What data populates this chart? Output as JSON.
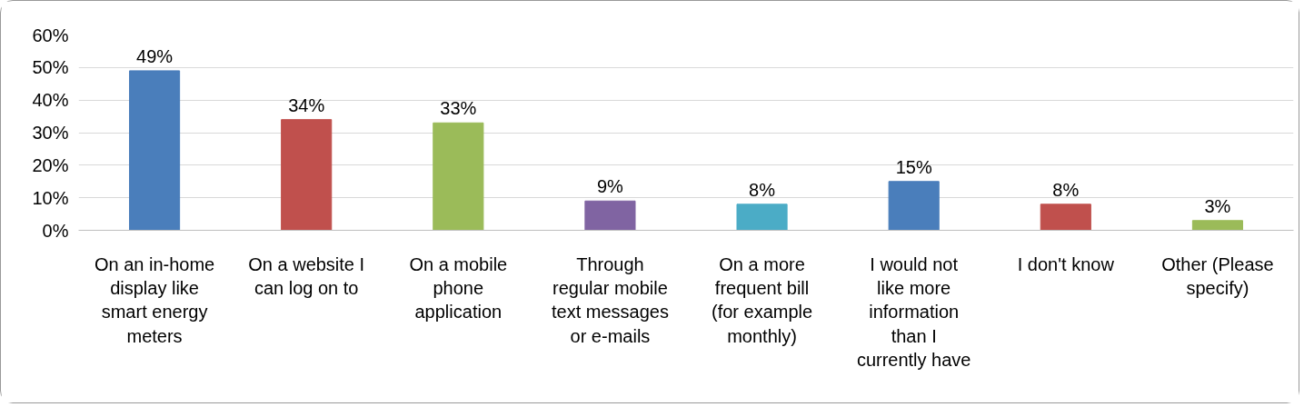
{
  "chart_data": {
    "type": "bar",
    "categories": [
      "On an in-home display like smart energy meters",
      "On a website I can log on to",
      "On a mobile phone application",
      "Through regular mobile text messages or e-mails",
      "On a more frequent bill (for example monthly)",
      "I would not like more information than I currently have",
      "I don't know",
      "Other (Please specify)"
    ],
    "values": [
      49,
      34,
      33,
      9,
      8,
      15,
      8,
      3
    ],
    "colors": [
      "#4a7ebb",
      "#c0504d",
      "#9bbb59",
      "#8064a2",
      "#4bacc6",
      "#4a7ebb",
      "#c0504d",
      "#9bbb59"
    ],
    "value_labels": [
      "49%",
      "34%",
      "33%",
      "9%",
      "8%",
      "15%",
      "8%",
      "3%"
    ],
    "ylim": [
      0,
      60
    ],
    "yticks": [
      {
        "value": 0,
        "label": "0%"
      },
      {
        "value": 10,
        "label": "10%"
      },
      {
        "value": 20,
        "label": "20%"
      },
      {
        "value": 30,
        "label": "30%"
      },
      {
        "value": 40,
        "label": "40%"
      },
      {
        "value": 50,
        "label": "50%"
      },
      {
        "value": 60,
        "label": "60%"
      }
    ],
    "grid": "y"
  }
}
